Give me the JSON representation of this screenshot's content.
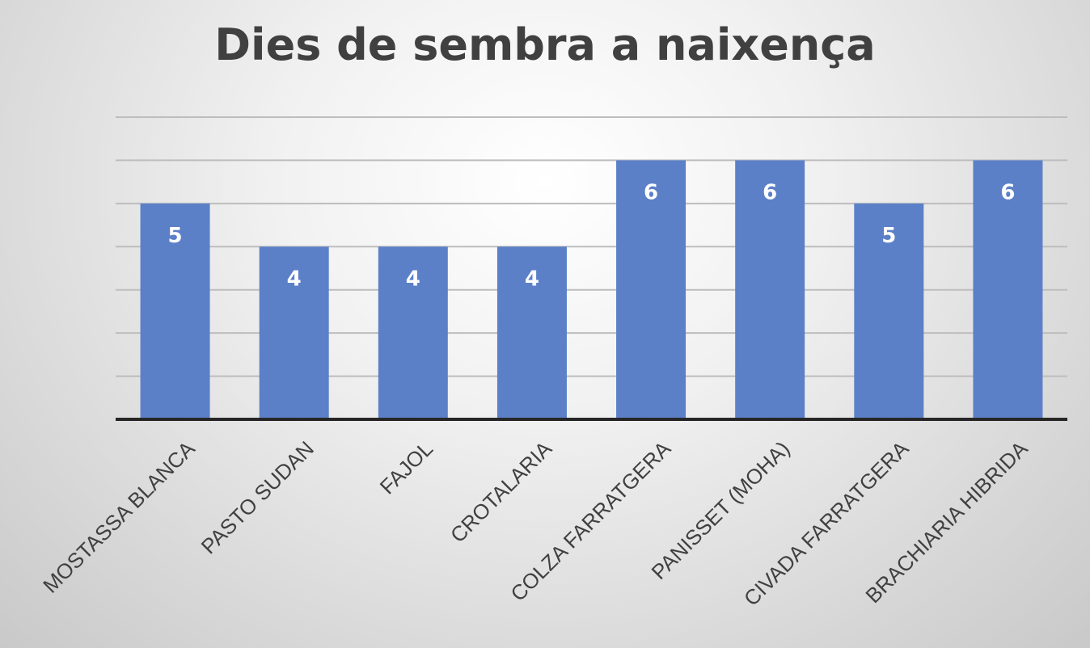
{
  "chart_data": {
    "type": "bar",
    "title": "Dies de sembra a naixença",
    "xlabel": "",
    "ylabel": "",
    "categories": [
      "MOSTASSA BLANCA",
      "PASTO SUDAN",
      "FAJOL",
      "CROTALARIA",
      "COLZA FARRATGERA",
      "PANISSET (MOHA)",
      "CIVADA FARRATGERA",
      "BRACHIARIA HIBRIDA"
    ],
    "values": [
      5,
      4,
      4,
      4,
      6,
      6,
      5,
      6
    ],
    "ylim": [
      0,
      7
    ],
    "grid": true,
    "legend": "none",
    "colors": {
      "bar": "#5b80c8",
      "grid": "#bdbdbd",
      "axis": "#262626",
      "title": "#404040",
      "label": "#ffffff",
      "tick": "#404040"
    }
  }
}
